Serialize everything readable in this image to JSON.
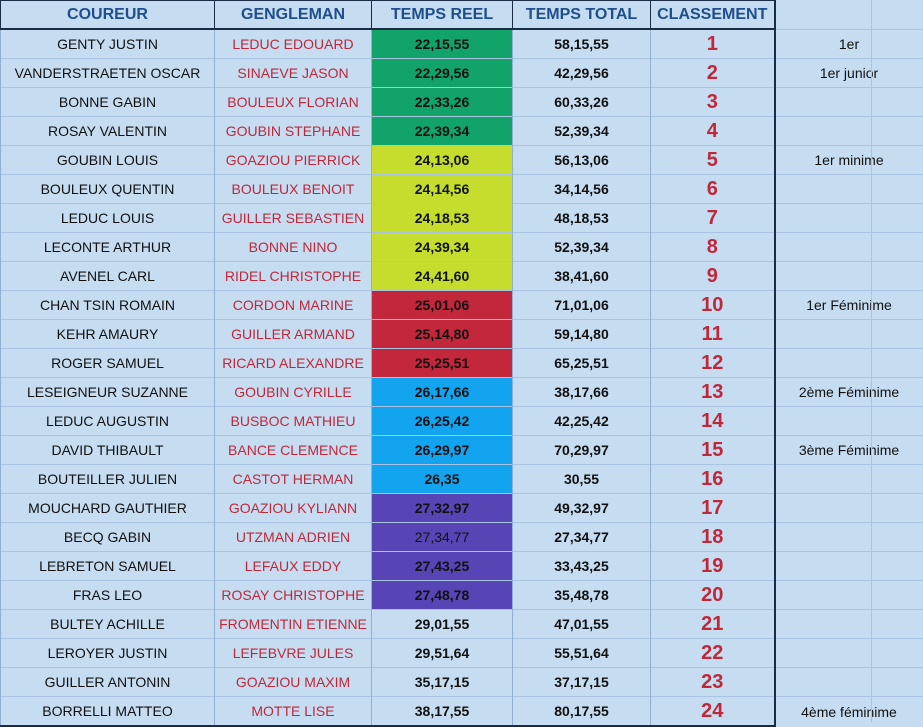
{
  "headers": {
    "runner": "COUREUR",
    "partner": "GENGLEMAN",
    "real_time": "TEMPS REEL",
    "total_time": "TEMPS TOTAL",
    "ranking": "CLASSEMENT"
  },
  "group_colors": {
    "green": "#12a36a",
    "lime": "#c6dd2e",
    "red": "#c2273b",
    "blue": "#12a4ef",
    "purple": "#5845b5"
  },
  "text_colors": {
    "header": "#1f4e8c",
    "partner": "#c0283a",
    "rank": "#c0283a"
  },
  "rows": [
    {
      "runner": "GENTY JUSTIN",
      "partner": "LEDUC EDOUARD",
      "real": "22,15,55",
      "total": "58,15,55",
      "rank": "1",
      "note": "1er",
      "group": "green"
    },
    {
      "runner": "VANDERSTRAETEN OSCAR",
      "partner": "SINAEVE JASON",
      "real": "22,29,56",
      "total": "42,29,56",
      "rank": "2",
      "note": "1er junior",
      "group": "green"
    },
    {
      "runner": "BONNE GABIN",
      "partner": "BOULEUX FLORIAN",
      "real": "22,33,26",
      "total": "60,33,26",
      "rank": "3",
      "note": "",
      "group": "green"
    },
    {
      "runner": "ROSAY VALENTIN",
      "partner": "GOUBIN STEPHANE",
      "real": "22,39,34",
      "total": "52,39,34",
      "rank": "4",
      "note": "",
      "group": "green"
    },
    {
      "runner": "GOUBIN LOUIS",
      "partner": "GOAZIOU PIERRICK",
      "real": "24,13,06",
      "total": "56,13,06",
      "rank": "5",
      "note": "1er minime",
      "group": "lime"
    },
    {
      "runner": "BOULEUX QUENTIN",
      "partner": "BOULEUX BENOIT",
      "real": "24,14,56",
      "total": "34,14,56",
      "rank": "6",
      "note": "",
      "group": "lime"
    },
    {
      "runner": "LEDUC LOUIS",
      "partner": "GUILLER SEBASTIEN",
      "real": "24,18,53",
      "total": "48,18,53",
      "rank": "7",
      "note": "",
      "group": "lime"
    },
    {
      "runner": "LECONTE ARTHUR",
      "partner": "BONNE NINO",
      "real": "24,39,34",
      "total": "52,39,34",
      "rank": "8",
      "note": "",
      "group": "lime"
    },
    {
      "runner": "AVENEL CARL",
      "partner": "RIDEL CHRISTOPHE",
      "real": "24,41,60",
      "total": "38,41,60",
      "rank": "9",
      "note": "",
      "group": "lime"
    },
    {
      "runner": "CHAN TSIN ROMAIN",
      "partner": "CORDON MARINE",
      "real": "25,01,06",
      "total": "71,01,06",
      "rank": "10",
      "note": "1er Féminime",
      "group": "red"
    },
    {
      "runner": "KEHR AMAURY",
      "partner": "GUILLER ARMAND",
      "real": "25,14,80",
      "total": "59,14,80",
      "rank": "11",
      "note": "",
      "group": "red"
    },
    {
      "runner": "ROGER SAMUEL",
      "partner": "RICARD ALEXANDRE",
      "real": "25,25,51",
      "total": "65,25,51",
      "rank": "12",
      "note": "",
      "group": "red"
    },
    {
      "runner": "LESEIGNEUR SUZANNE",
      "partner": "GOUBIN CYRILLE",
      "real": "26,17,66",
      "total": "38,17,66",
      "rank": "13",
      "note": "2ème Féminime",
      "group": "blue"
    },
    {
      "runner": "LEDUC AUGUSTIN",
      "partner": "BUSBOC MATHIEU",
      "real": "26,25,42",
      "total": "42,25,42",
      "rank": "14",
      "note": "",
      "group": "blue"
    },
    {
      "runner": "DAVID THIBAULT",
      "partner": "BANCE CLEMENCE",
      "real": "26,29,97",
      "total": "70,29,97",
      "rank": "15",
      "note": "3ème Féminime",
      "group": "blue"
    },
    {
      "runner": "BOUTEILLER JULIEN",
      "partner": "CASTOT HERMAN",
      "real": "26,35",
      "total": "30,55",
      "rank": "16",
      "note": "",
      "group": "blue"
    },
    {
      "runner": "MOUCHARD GAUTHIER",
      "partner": "GOAZIOU KYLIANN",
      "real": "27,32,97",
      "total": "49,32,97",
      "rank": "17",
      "note": "",
      "group": "purple"
    },
    {
      "runner": "BECQ GABIN",
      "partner": "UTZMAN ADRIEN",
      "real": "27,34,77",
      "total": "27,34,77",
      "rank": "18",
      "note": "",
      "group": "purple"
    },
    {
      "runner": "LEBRETON SAMUEL",
      "partner": "LEFAUX EDDY",
      "real": "27,43,25",
      "total": "33,43,25",
      "rank": "19",
      "note": "",
      "group": "purple"
    },
    {
      "runner": "FRAS LEO",
      "partner": "ROSAY CHRISTOPHE",
      "real": "27,48,78",
      "total": "35,48,78",
      "rank": "20",
      "note": "",
      "group": "purple"
    },
    {
      "runner": "BULTEY ACHILLE",
      "partner": "FROMENTIN ETIENNE",
      "real": "29,01,55",
      "total": "47,01,55",
      "rank": "21",
      "note": "",
      "group": "none"
    },
    {
      "runner": "LEROYER JUSTIN",
      "partner": "LEFEBVRE JULES",
      "real": "29,51,64",
      "total": "55,51,64",
      "rank": "22",
      "note": "",
      "group": "none"
    },
    {
      "runner": "GUILLER ANTONIN",
      "partner": "GOAZIOU MAXIM",
      "real": "35,17,15",
      "total": "37,17,15",
      "rank": "23",
      "note": "",
      "group": "none"
    },
    {
      "runner": "BORRELLI MATTEO",
      "partner": "MOTTE LISE",
      "real": "38,17,55",
      "total": "80,17,55",
      "rank": "24",
      "note": "4ème féminime",
      "group": "none"
    }
  ]
}
